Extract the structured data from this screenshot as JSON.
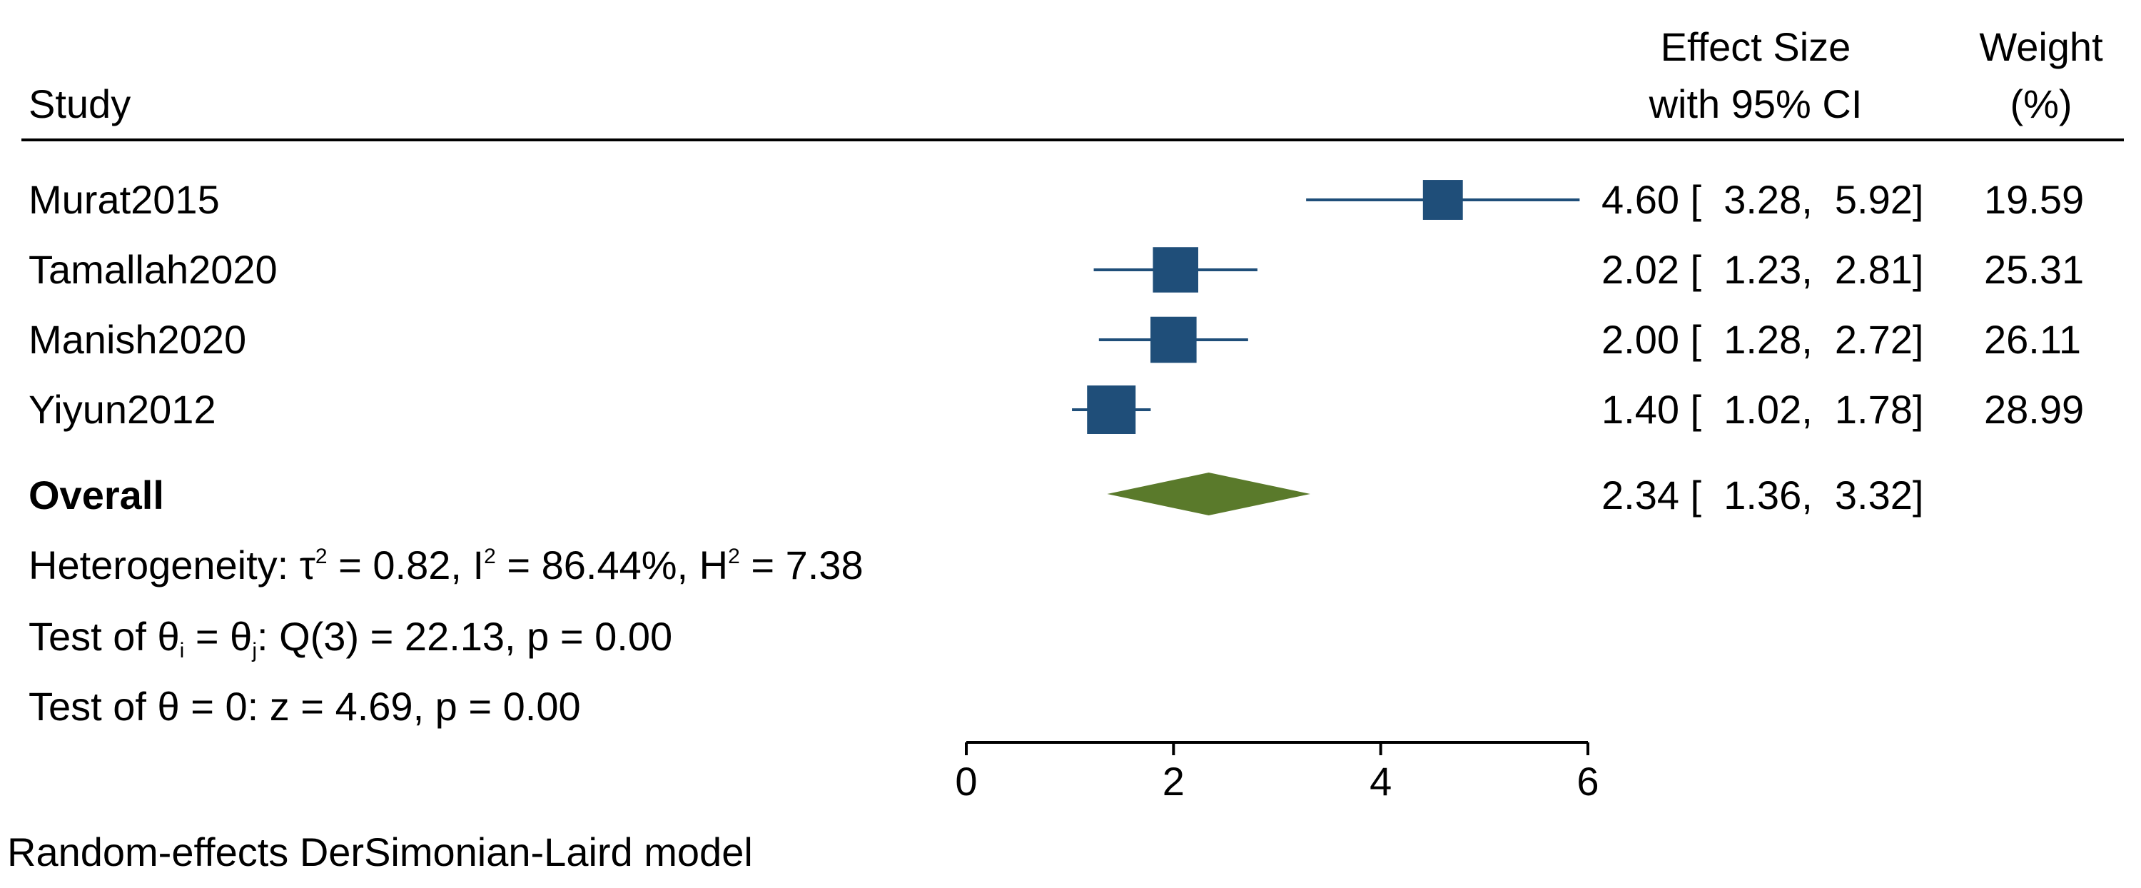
{
  "header": {
    "study": "Study",
    "effect_line1": "Effect Size",
    "effect_line2": "with 95% CI",
    "weight_line1": "Weight",
    "weight_line2": "(%)"
  },
  "studies": [
    {
      "name": "Murat2015",
      "es_text": "4.60 [  3.28,  5.92]",
      "weight": "19.59"
    },
    {
      "name": "Tamallah2020",
      "es_text": "2.02 [  1.23,  2.81]",
      "weight": "25.31"
    },
    {
      "name": "Manish2020",
      "es_text": "2.00 [  1.28,  2.72]",
      "weight": "26.11"
    },
    {
      "name": "Yiyun2012",
      "es_text": "1.40 [  1.02,  1.78]",
      "weight": "28.99"
    }
  ],
  "overall": {
    "label": "Overall",
    "es_text": "2.34 [  1.36,  3.32]"
  },
  "stats": {
    "het_prefix": "Heterogeneity: τ",
    "tau_sup": "2",
    "het_mid1": " = 0.82, I",
    "i_sup": "2",
    "het_mid2": " = 86.44%, H",
    "h_sup": "2",
    "het_end": " = 7.38",
    "test1_prefix": "Test of θ",
    "test1_sub_i": "i",
    "test1_mid": " = θ",
    "test1_sub_j": "j",
    "test1_end": ": Q(3) = 22.13, p = 0.00",
    "test2": "Test of θ = 0: z = 4.69, p = 0.00"
  },
  "footnote": "Random-effects DerSimonian-Laird model",
  "colors": {
    "study_marker": "#1f4e79",
    "overall_diamond": "#5a7a2b",
    "line": "#000000"
  },
  "chart_data": {
    "type": "forest",
    "x_ticks": [
      0,
      2,
      4,
      6
    ],
    "xlim": [
      0,
      6
    ],
    "series": [
      {
        "name": "Murat2015",
        "estimate": 4.6,
        "ci_low": 3.28,
        "ci_high": 5.92,
        "weight": 19.59
      },
      {
        "name": "Tamallah2020",
        "estimate": 2.02,
        "ci_low": 1.23,
        "ci_high": 2.81,
        "weight": 25.31
      },
      {
        "name": "Manish2020",
        "estimate": 2.0,
        "ci_low": 1.28,
        "ci_high": 2.72,
        "weight": 26.11
      },
      {
        "name": "Yiyun2012",
        "estimate": 1.4,
        "ci_low": 1.02,
        "ci_high": 1.78,
        "weight": 28.99
      }
    ],
    "overall": {
      "name": "Overall",
      "estimate": 2.34,
      "ci_low": 1.36,
      "ci_high": 3.32
    }
  }
}
